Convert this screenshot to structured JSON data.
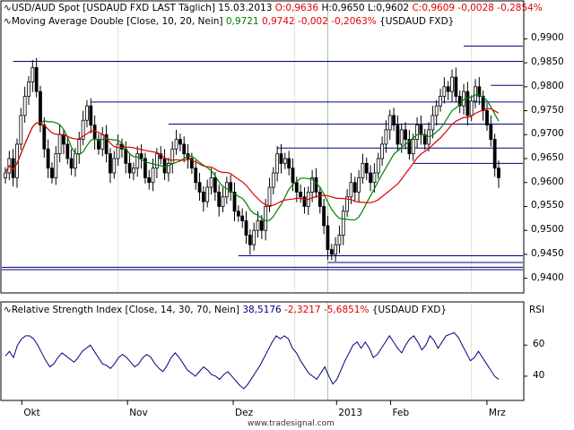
{
  "header": {
    "price": {
      "name": "USD/AUD Spot [USDAUD FXD LAST Täglich]",
      "date": "15.03.2013",
      "open": "O:0,9636",
      "high": "H:0,9650",
      "low": "L:0,9602",
      "close": "C:0,9609",
      "change": "-0,0028",
      "change_pct": "-0,2854%"
    },
    "ma": {
      "name": "Moving Average Double [Close, 10, 20, Nein]",
      "v1": "0,9721",
      "v2": "0,9742",
      "change": "-0,002",
      "change_pct": "-0,2063%",
      "symbol": "{USDAUD FXD}"
    },
    "rsi": {
      "name": "Relative Strength Index [Close, 14, 30, 70, Nein]",
      "value": "38,5176",
      "change": "-2,3217",
      "change_pct": "-5,6851%",
      "symbol": "{USDAUD FXD}"
    }
  },
  "colors": {
    "up": "#ffffff",
    "down": "#000000",
    "ma_short": "#008000",
    "ma_long": "#e00000",
    "rsi": "#000080",
    "hline": "#000080",
    "red_text": "#e00000",
    "green_text": "#008000",
    "grid": "#d8e8d8"
  },
  "brand": "www.tradesignal.com",
  "chart_data": [
    {
      "type": "candlestick",
      "title": "USD/AUD Spot [USDAUD FXD LAST Täglich]",
      "x_ticks": [
        "Okt",
        "Nov",
        "Dez",
        "2013",
        "Feb",
        "Mrz"
      ],
      "y_ticks": [
        "0,9900",
        "0,9850",
        "0,9800",
        "0,9750",
        "0,9700",
        "0,9650",
        "0,9600",
        "0,9550",
        "0,9500",
        "0,9450",
        "0,9400"
      ],
      "y_tick_values": [
        0.99,
        0.985,
        0.98,
        0.975,
        0.97,
        0.965,
        0.96,
        0.955,
        0.95,
        0.945,
        0.94
      ],
      "ylim": [
        0.9375,
        0.9925
      ],
      "support_resistance": [
        {
          "y": 0.9885,
          "x_from": 118,
          "x_to": 130
        },
        {
          "y": 0.9853,
          "x_from": 2,
          "x_to": 130
        },
        {
          "y": 0.9803,
          "x_from": 125,
          "x_to": 130
        },
        {
          "y": 0.9768,
          "x_from": 22,
          "x_to": 120
        },
        {
          "y": 0.9722,
          "x_from": 42,
          "x_to": 110
        },
        {
          "y": 0.9672,
          "x_from": 70,
          "x_to": 125
        },
        {
          "y": 0.964,
          "x_from": 105,
          "x_to": 130
        },
        {
          "y": 0.9447,
          "x_from": 60,
          "x_to": 130
        },
        {
          "y": 0.9433,
          "x_from": 83,
          "x_to": 130
        },
        {
          "y": 0.9423,
          "x_from": 0,
          "x_to": 130
        },
        {
          "y": 0.9418,
          "x_from": 0,
          "x_to": 130
        }
      ],
      "close": [
        0.962,
        0.965,
        0.961,
        0.968,
        0.974,
        0.978,
        0.981,
        0.984,
        0.979,
        0.972,
        0.967,
        0.963,
        0.961,
        0.966,
        0.97,
        0.968,
        0.965,
        0.963,
        0.966,
        0.969,
        0.973,
        0.976,
        0.972,
        0.969,
        0.967,
        0.97,
        0.966,
        0.962,
        0.965,
        0.968,
        0.967,
        0.964,
        0.962,
        0.963,
        0.966,
        0.965,
        0.961,
        0.96,
        0.963,
        0.966,
        0.965,
        0.962,
        0.964,
        0.967,
        0.969,
        0.968,
        0.966,
        0.965,
        0.963,
        0.96,
        0.958,
        0.956,
        0.959,
        0.961,
        0.958,
        0.955,
        0.957,
        0.96,
        0.958,
        0.954,
        0.953,
        0.952,
        0.949,
        0.947,
        0.95,
        0.952,
        0.95,
        0.955,
        0.959,
        0.962,
        0.966,
        0.964,
        0.965,
        0.963,
        0.96,
        0.958,
        0.957,
        0.955,
        0.958,
        0.961,
        0.958,
        0.955,
        0.951,
        0.946,
        0.945,
        0.947,
        0.949,
        0.954,
        0.957,
        0.96,
        0.958,
        0.961,
        0.964,
        0.962,
        0.96,
        0.962,
        0.965,
        0.968,
        0.971,
        0.974,
        0.972,
        0.968,
        0.971,
        0.969,
        0.966,
        0.969,
        0.972,
        0.97,
        0.968,
        0.971,
        0.974,
        0.976,
        0.978,
        0.98,
        0.979,
        0.982,
        0.978,
        0.976,
        0.979,
        0.974,
        0.977,
        0.98,
        0.978,
        0.975,
        0.972,
        0.969,
        0.963,
        0.961
      ],
      "series": [
        {
          "name": "Moving Average 10",
          "param": 10
        },
        {
          "name": "Moving Average 20",
          "param": 20
        }
      ]
    },
    {
      "type": "line",
      "title": "Relative Strength Index [Close, 14, 30, 70, Nein]",
      "ylabel": "RSI",
      "y_ticks": [
        "60",
        "40"
      ],
      "y_tick_values": [
        60,
        40
      ],
      "ylim": [
        25,
        78
      ],
      "values": [
        53,
        56,
        52,
        60,
        64,
        66,
        66,
        64,
        60,
        55,
        50,
        46,
        48,
        52,
        55,
        53,
        51,
        49,
        52,
        56,
        58,
        60,
        56,
        52,
        48,
        47,
        45,
        48,
        52,
        54,
        52,
        49,
        46,
        48,
        52,
        54,
        52,
        48,
        45,
        43,
        47,
        52,
        55,
        52,
        48,
        44,
        42,
        40,
        43,
        46,
        44,
        41,
        40,
        38,
        41,
        43,
        40,
        37,
        34,
        32,
        35,
        39,
        43,
        47,
        52,
        57,
        62,
        66,
        64,
        66,
        64,
        58,
        55,
        50,
        46,
        42,
        40,
        38,
        42,
        46,
        40,
        35,
        38,
        44,
        50,
        55,
        60,
        62,
        58,
        62,
        58,
        52,
        54,
        58,
        62,
        66,
        62,
        58,
        55,
        60,
        64,
        66,
        62,
        57,
        60,
        66,
        63,
        58,
        62,
        66,
        67,
        68,
        65,
        60,
        55,
        50,
        52,
        56,
        52,
        48,
        44,
        40,
        38
      ]
    }
  ]
}
